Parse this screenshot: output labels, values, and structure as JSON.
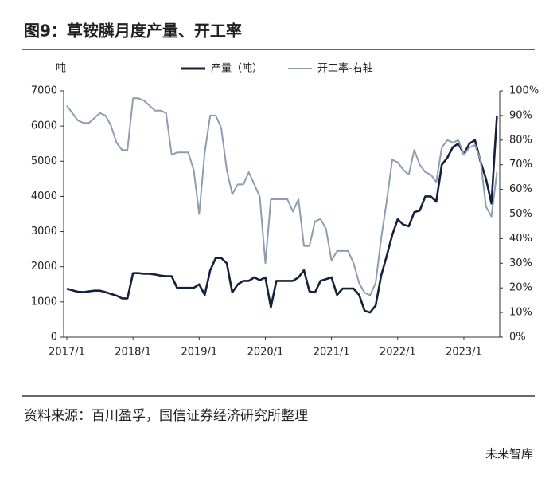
{
  "chart_data": {
    "type": "line",
    "title": "图9：草铵膦月度产量、开工率",
    "ylabel": "吨",
    "categories": [
      "2017/1",
      null,
      null,
      null,
      null,
      null,
      null,
      null,
      null,
      null,
      null,
      null,
      "2018/1",
      null,
      null,
      null,
      null,
      null,
      null,
      null,
      null,
      null,
      null,
      null,
      "2019/1",
      null,
      null,
      null,
      null,
      null,
      null,
      null,
      null,
      null,
      null,
      null,
      "2020/1",
      null,
      null,
      null,
      null,
      null,
      null,
      null,
      null,
      null,
      null,
      null,
      "2021/1",
      null,
      null,
      null,
      null,
      null,
      null,
      null,
      null,
      null,
      null,
      null,
      "2022/1",
      null,
      null,
      null,
      null,
      null,
      null,
      null,
      null,
      null,
      null,
      null,
      "2023/1",
      null,
      null,
      null,
      null,
      null,
      null
    ],
    "series": [
      {
        "name": "产量（吨）",
        "color": "#14213d",
        "values": [
          1380,
          1330,
          1290,
          1280,
          1300,
          1320,
          1320,
          1280,
          1230,
          1180,
          1100,
          1100,
          1820,
          1820,
          1800,
          1800,
          1780,
          1750,
          1730,
          1730,
          1400,
          1400,
          1400,
          1400,
          1500,
          1200,
          1900,
          2250,
          2250,
          2100,
          1270,
          1500,
          1600,
          1600,
          1700,
          1620,
          1700,
          850,
          1600,
          1600,
          1600,
          1600,
          1700,
          1900,
          1300,
          1270,
          1600,
          1650,
          1700,
          1200,
          1380,
          1380,
          1380,
          1200,
          750,
          700,
          900,
          1750,
          2300,
          2900,
          3350,
          3200,
          3150,
          3550,
          3600,
          4000,
          4000,
          3850,
          4900,
          5100,
          5400,
          5500,
          5200,
          5500,
          5600,
          5000,
          4500,
          3800,
          6300
        ]
      },
      {
        "name": "开工率-右轴",
        "color": "#8d9db0",
        "axis": "y2",
        "values": [
          94,
          91,
          88,
          87,
          87,
          89,
          91,
          90,
          86,
          79,
          76,
          76,
          97,
          97,
          96,
          94,
          92,
          92,
          91,
          74,
          75,
          75,
          75,
          68,
          50,
          75,
          90,
          90,
          85,
          68,
          58,
          62,
          62,
          67,
          62,
          57,
          30,
          56,
          56,
          56,
          56,
          51,
          56,
          37,
          37,
          47,
          48,
          44,
          31,
          35,
          35,
          35,
          30,
          22,
          18,
          17,
          22,
          40,
          55,
          72,
          71,
          68,
          66,
          76,
          70,
          67,
          66,
          63,
          77,
          80,
          79,
          80,
          74,
          77,
          78,
          72,
          53,
          49,
          67
        ]
      }
    ],
    "ylim": [
      0,
      7000
    ],
    "yticks": [
      0,
      1000,
      2000,
      3000,
      4000,
      5000,
      6000,
      7000
    ],
    "y2lim": [
      0,
      100
    ],
    "y2ticks": [
      {
        "value": 0,
        "label": "0%"
      },
      {
        "value": 10,
        "label": "10%"
      },
      {
        "value": 20,
        "label": "20%"
      },
      {
        "value": 30,
        "label": "30%"
      },
      {
        "value": 40,
        "label": "40%"
      },
      {
        "value": 50,
        "label": "50%"
      },
      {
        "value": 60,
        "label": "60%"
      },
      {
        "value": 70,
        "label": "70%"
      },
      {
        "value": 80,
        "label": "80%"
      },
      {
        "value": 90,
        "label": "90%"
      },
      {
        "value": 100,
        "label": "100%"
      }
    ],
    "legend": "top"
  },
  "source": "资料来源：百川盈孚，国信证券经济研究所整理",
  "watermark": "未来智库"
}
